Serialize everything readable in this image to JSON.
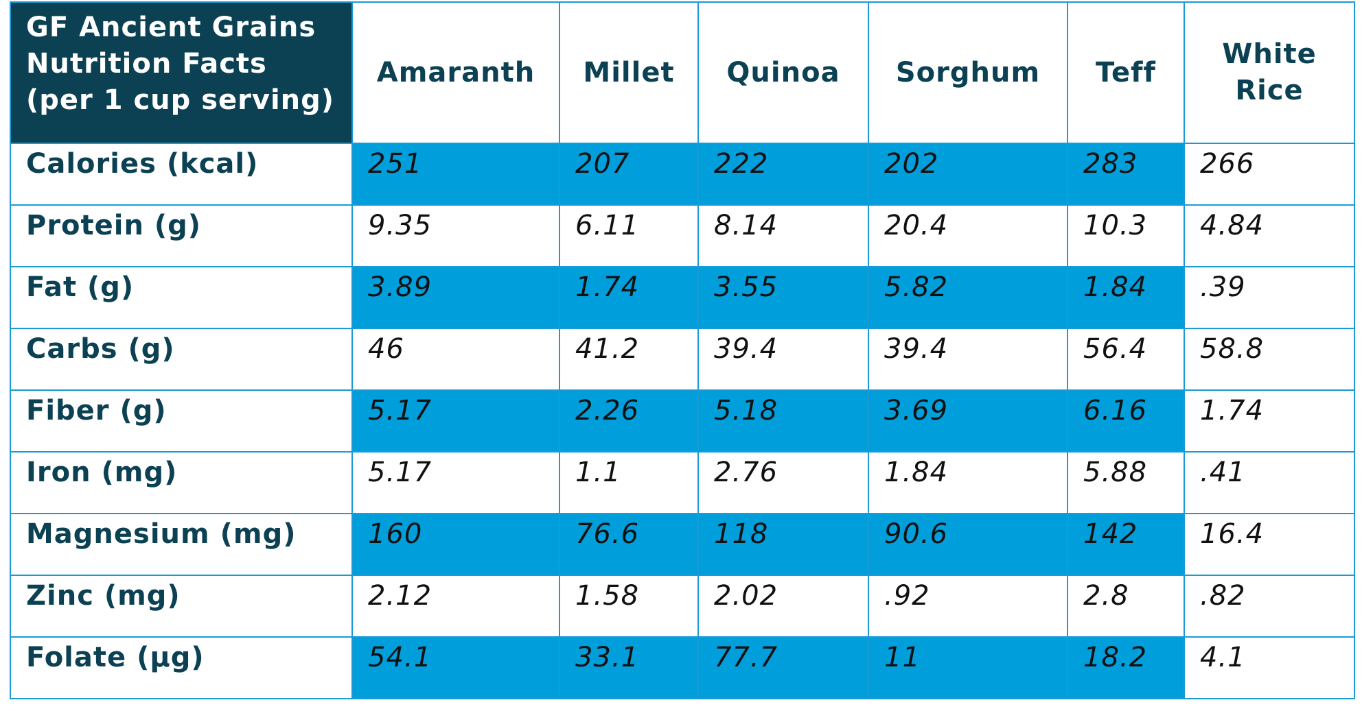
{
  "table": {
    "title": "GF Ancient Grains Nutrition Facts (per 1 cup serving)",
    "title_lines": [
      "GF Ancient Grains",
      "Nutrition Facts",
      "(per 1 cup serving)"
    ],
    "columns": [
      {
        "label": "Amaranth",
        "lines": [
          "Amaranth"
        ]
      },
      {
        "label": "Millet",
        "lines": [
          "Millet"
        ]
      },
      {
        "label": "Quinoa",
        "lines": [
          "Quinoa"
        ]
      },
      {
        "label": "Sorghum",
        "lines": [
          "Sorghum"
        ]
      },
      {
        "label": "Teff",
        "lines": [
          "Teff"
        ]
      },
      {
        "label": "White Rice",
        "lines": [
          "White",
          "Rice"
        ]
      }
    ],
    "rows": [
      {
        "label": "Calories (kcal)",
        "values": [
          "251",
          "207",
          "222",
          "202",
          "283",
          "266"
        ],
        "shaded": true
      },
      {
        "label": "Protein (g)",
        "values": [
          "9.35",
          "6.11",
          "8.14",
          "20.4",
          "10.3",
          "4.84"
        ],
        "shaded": false
      },
      {
        "label": "Fat (g)",
        "values": [
          "3.89",
          "1.74",
          "3.55",
          "5.82",
          "1.84",
          ".39"
        ],
        "shaded": true
      },
      {
        "label": "Carbs (g)",
        "values": [
          "46",
          "41.2",
          "39.4",
          "39.4",
          "56.4",
          "58.8"
        ],
        "shaded": false
      },
      {
        "label": "Fiber (g)",
        "values": [
          "5.17",
          "2.26",
          "5.18",
          "3.69",
          "6.16",
          "1.74"
        ],
        "shaded": true
      },
      {
        "label": "Iron (mg)",
        "values": [
          "5.17",
          "1.1",
          "2.76",
          "1.84",
          "5.88",
          ".41"
        ],
        "shaded": false
      },
      {
        "label": "Magnesium (mg)",
        "values": [
          "160",
          "76.6",
          "118",
          "90.6",
          "142",
          "16.4"
        ],
        "shaded": true
      },
      {
        "label": "Zinc (mg)",
        "values": [
          "2.12",
          "1.58",
          "2.02",
          ".92",
          "2.8",
          ".82"
        ],
        "shaded": false
      },
      {
        "label": "Folate (µg)",
        "values": [
          "54.1",
          "33.1",
          "77.7",
          "11",
          "18.2",
          "4.1"
        ],
        "shaded": true
      }
    ]
  },
  "colors": {
    "header_bg": "#0b4153",
    "header_text": "#ffffff",
    "label_text": "#0b4153",
    "shade": "#009fdc",
    "border": "#1a9ad6"
  }
}
